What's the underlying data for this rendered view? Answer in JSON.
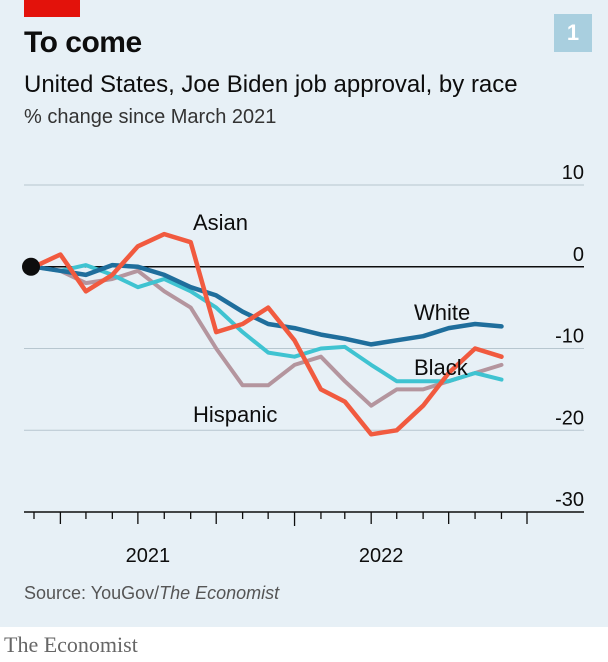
{
  "header": {
    "title": "To come",
    "badge": "1",
    "subtitle": "United States, Joe Biden job approval, by race",
    "unit": "% change since March 2021"
  },
  "footer": {
    "source_prefix": "Source: YouGov/",
    "source_italic": "The Economist",
    "brand": "The Economist"
  },
  "colors": {
    "panel": "#e7f0f6",
    "accent_red": "#e3120b",
    "White": "#1f6e9c",
    "Black": "#3fc3d1",
    "Hispanic": "#b4959e",
    "Asian": "#f15a3f"
  },
  "chart_data": {
    "type": "line",
    "xlabel": "",
    "ylabel": "",
    "xlim": [
      "2021-03-01",
      "2022-10-01"
    ],
    "ylim": [
      -30,
      10
    ],
    "yticks": [
      10,
      0,
      -10,
      -20,
      -30
    ],
    "ytick_labels": [
      "10",
      "0",
      "-10",
      "-20",
      "-30"
    ],
    "xtick_labels": [
      "2021",
      "2022"
    ],
    "grid": true,
    "series": [
      {
        "name": "White",
        "x": [
          "2021-03-01",
          "2021-04-01",
          "2021-05-01",
          "2021-06-01",
          "2021-07-01",
          "2021-08-01",
          "2021-09-01",
          "2021-10-01",
          "2021-11-01",
          "2021-12-01",
          "2022-01-01",
          "2022-02-01",
          "2022-03-01",
          "2022-04-01",
          "2022-05-01",
          "2022-06-01",
          "2022-07-01",
          "2022-08-01",
          "2022-09-01"
        ],
        "values": [
          0,
          -0.5,
          -1,
          0.2,
          0,
          -1,
          -2.5,
          -3.5,
          -5.5,
          -7,
          -7.5,
          -8.3,
          -8.8,
          -9.5,
          -9,
          -8.5,
          -7.5,
          -7,
          -7.3
        ]
      },
      {
        "name": "Black",
        "x": [
          "2021-03-01",
          "2021-04-01",
          "2021-05-01",
          "2021-06-01",
          "2021-07-01",
          "2021-08-01",
          "2021-09-01",
          "2021-10-01",
          "2021-11-01",
          "2021-12-01",
          "2022-01-01",
          "2022-02-01",
          "2022-03-01",
          "2022-04-01",
          "2022-05-01",
          "2022-06-01",
          "2022-07-01",
          "2022-08-01",
          "2022-09-01"
        ],
        "values": [
          0,
          -0.5,
          0.2,
          -1,
          -2.5,
          -1.5,
          -3,
          -5,
          -8,
          -10.5,
          -11,
          -10,
          -9.8,
          -12,
          -14,
          -14,
          -14,
          -13,
          -13.8
        ]
      },
      {
        "name": "Hispanic",
        "x": [
          "2021-03-01",
          "2021-04-01",
          "2021-05-01",
          "2021-06-01",
          "2021-07-01",
          "2021-08-01",
          "2021-09-01",
          "2021-10-01",
          "2021-11-01",
          "2021-12-01",
          "2022-01-01",
          "2022-02-01",
          "2022-03-01",
          "2022-04-01",
          "2022-05-01",
          "2022-06-01",
          "2022-07-01",
          "2022-08-01",
          "2022-09-01"
        ],
        "values": [
          0,
          -0.5,
          -2,
          -1.5,
          -0.5,
          -3,
          -5,
          -10,
          -14.5,
          -14.5,
          -12,
          -11,
          -14,
          -17,
          -15,
          -15,
          -14,
          -13,
          -12
        ]
      },
      {
        "name": "Asian",
        "x": [
          "2021-03-01",
          "2021-04-01",
          "2021-05-01",
          "2021-06-01",
          "2021-07-01",
          "2021-08-01",
          "2021-09-01",
          "2021-10-01",
          "2021-11-01",
          "2021-12-01",
          "2022-01-01",
          "2022-02-01",
          "2022-03-01",
          "2022-04-01",
          "2022-05-01",
          "2022-06-01",
          "2022-07-01",
          "2022-08-01",
          "2022-09-01"
        ],
        "values": [
          0,
          1.5,
          -3,
          -1,
          2.5,
          4,
          3,
          -8,
          -7,
          -5,
          -9,
          -15,
          -16.5,
          -20.5,
          -20,
          -17,
          -13,
          -10,
          -11
        ]
      }
    ]
  }
}
